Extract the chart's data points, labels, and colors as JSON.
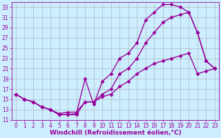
{
  "xlabel": "Windchill (Refroidissement éolien,°C)",
  "bg_color": "#cceeff",
  "line_color": "#990099",
  "grid_color": "#aaaaaa",
  "xlim": [
    -0.5,
    23.5
  ],
  "ylim": [
    11,
    34
  ],
  "xticks": [
    0,
    1,
    2,
    3,
    4,
    5,
    6,
    7,
    8,
    9,
    10,
    11,
    12,
    13,
    14,
    15,
    16,
    17,
    18,
    19,
    20,
    21,
    22,
    23
  ],
  "yticks": [
    11,
    13,
    15,
    17,
    19,
    21,
    23,
    25,
    27,
    29,
    31,
    33
  ],
  "line1_x": [
    0,
    1,
    2,
    3,
    4,
    5,
    6,
    7,
    8,
    9,
    10,
    11,
    12,
    13,
    14,
    15,
    16,
    17,
    18,
    19,
    20,
    21,
    22,
    23
  ],
  "line1_y": [
    16,
    15,
    14.5,
    13.5,
    13,
    12,
    12,
    12.2,
    19,
    14,
    18.5,
    20,
    23,
    24,
    26,
    30.5,
    32,
    33.5,
    33.5,
    33,
    32,
    28,
    22.5,
    21
  ],
  "line2_x": [
    0,
    1,
    2,
    3,
    4,
    5,
    6,
    7,
    8,
    9,
    10,
    11,
    12,
    13,
    14,
    15,
    16,
    17,
    18,
    19,
    20,
    21,
    22,
    23
  ],
  "line2_y": [
    16,
    15,
    14.5,
    13.5,
    13,
    12.2,
    12.5,
    12.5,
    14.5,
    14.5,
    16,
    17,
    20,
    21,
    23,
    26,
    28,
    30,
    31,
    31.5,
    32,
    28,
    22.5,
    21
  ],
  "line3_x": [
    0,
    1,
    2,
    3,
    4,
    5,
    6,
    7,
    8,
    9,
    10,
    11,
    12,
    13,
    14,
    15,
    16,
    17,
    18,
    19,
    20,
    21,
    22,
    23
  ],
  "line3_y": [
    16,
    15,
    14.5,
    13.5,
    13,
    12,
    12,
    12,
    14.5,
    14.5,
    15.5,
    16,
    17.5,
    18.5,
    20,
    21,
    22,
    22.5,
    23,
    23.5,
    24,
    20,
    20.5,
    21
  ],
  "marker": "D",
  "markersize": 2.5,
  "linewidth": 1.0,
  "tick_fontsize": 5.5,
  "label_fontsize": 6.5
}
